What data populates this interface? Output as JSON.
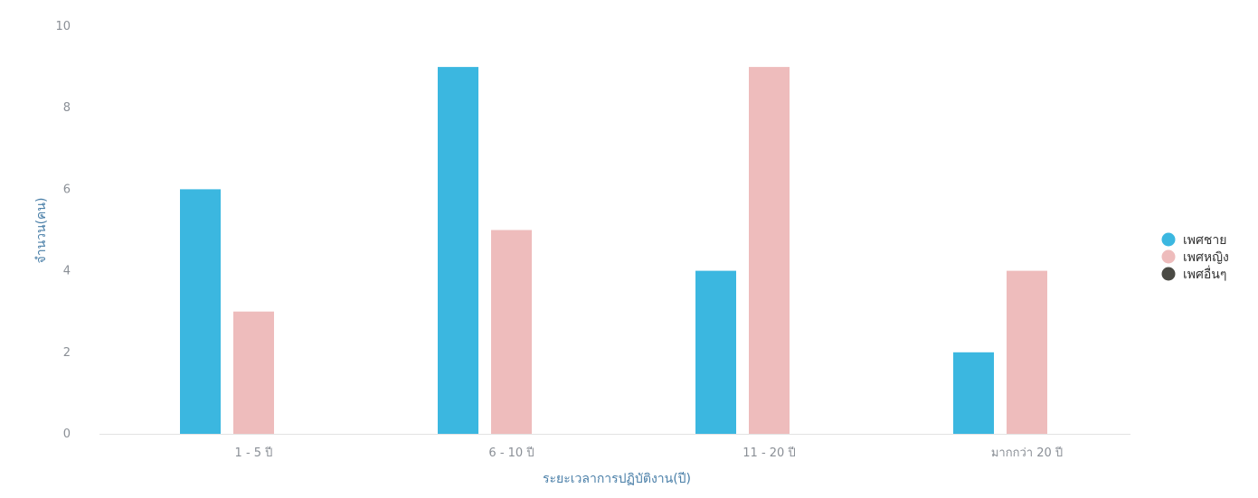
{
  "chart_data": {
    "type": "bar",
    "categories": [
      "1 - 5 ปี",
      "6 - 10 ปี",
      "11 - 20 ปี",
      "มากกว่า 20 ปี"
    ],
    "series": [
      {
        "name": "เพศชาย",
        "values": [
          6,
          9,
          4,
          2
        ],
        "color": "#3bb7e0"
      },
      {
        "name": "เพศหญิง",
        "values": [
          3,
          5,
          9,
          4
        ],
        "color": "#eebcbc"
      },
      {
        "name": "เพศอื่นๆ",
        "values": [
          0,
          0,
          0,
          0
        ],
        "color": "#4a4a44"
      }
    ],
    "xlabel": "ระยะเวลาการปฏิบัติงาน(ปี)",
    "ylabel": "จำนวน(คน)",
    "ylim": [
      0,
      10
    ],
    "yticks": [
      "0",
      "2",
      "4",
      "6",
      "8",
      "10"
    ],
    "grid": false,
    "legend": "right",
    "axis_color": "#e3e3e3"
  }
}
